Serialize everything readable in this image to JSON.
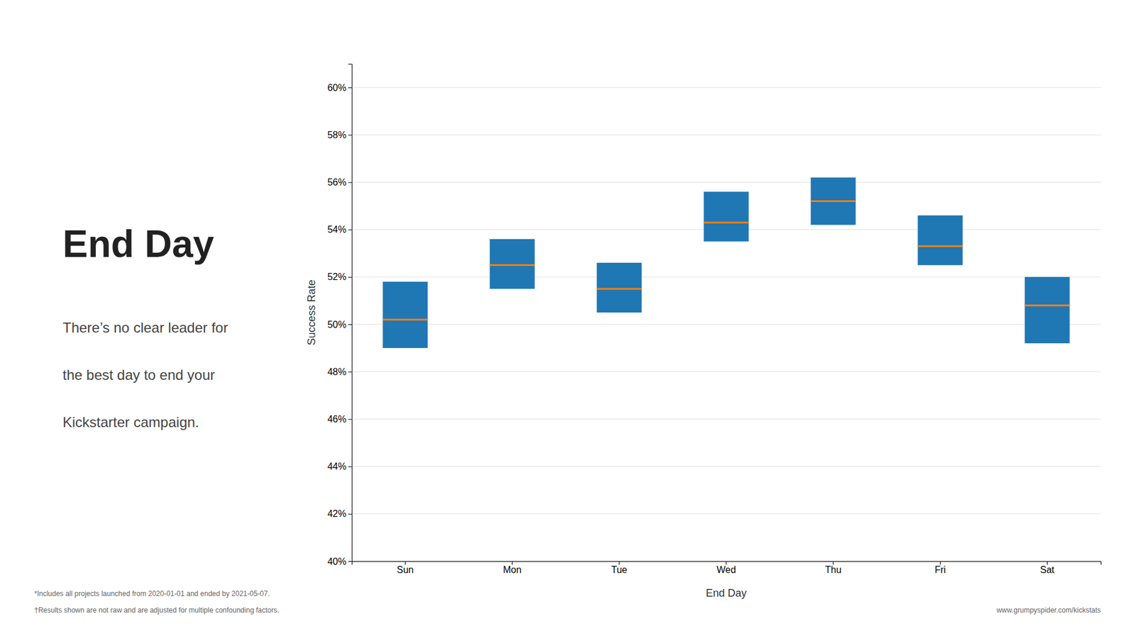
{
  "chart_data": {
    "type": "range_bar",
    "title": "End Day",
    "subtitle": [
      "There’s no clear leader for",
      "the best day to end your",
      "Kickstarter campaign."
    ],
    "xlabel": "End Day",
    "ylabel": "Success Rate",
    "categories": [
      "Sun",
      "Mon",
      "Tue",
      "Wed",
      "Thu",
      "Fri",
      "Sat"
    ],
    "values": [
      50.2,
      52.5,
      51.5,
      54.3,
      55.2,
      53.3,
      50.8
    ],
    "ci_low": [
      49.0,
      51.5,
      50.5,
      53.5,
      54.2,
      52.5,
      49.2
    ],
    "ci_high": [
      51.8,
      53.6,
      52.6,
      55.6,
      56.2,
      54.6,
      52.0
    ],
    "ylim": [
      40,
      61
    ],
    "yticks": [
      {
        "value": 40,
        "label": "40%"
      },
      {
        "value": 42,
        "label": "42%"
      },
      {
        "value": 44,
        "label": "44%"
      },
      {
        "value": 46,
        "label": "46%"
      },
      {
        "value": 48,
        "label": "48%"
      },
      {
        "value": 50,
        "label": "50%"
      },
      {
        "value": 52,
        "label": "52%"
      },
      {
        "value": 54,
        "label": "54%"
      },
      {
        "value": 56,
        "label": "56%"
      },
      {
        "value": 58,
        "label": "58%"
      },
      {
        "value": 60,
        "label": "60%"
      }
    ],
    "grid": true,
    "annotations": [
      "*Includes all projects launched from 2020-01-01  and ended by 2021-05-07.",
      "†Results shown are not raw and are adjusted for multiple confounding factors.",
      "www.grumpyspider.com/kickstats"
    ]
  }
}
